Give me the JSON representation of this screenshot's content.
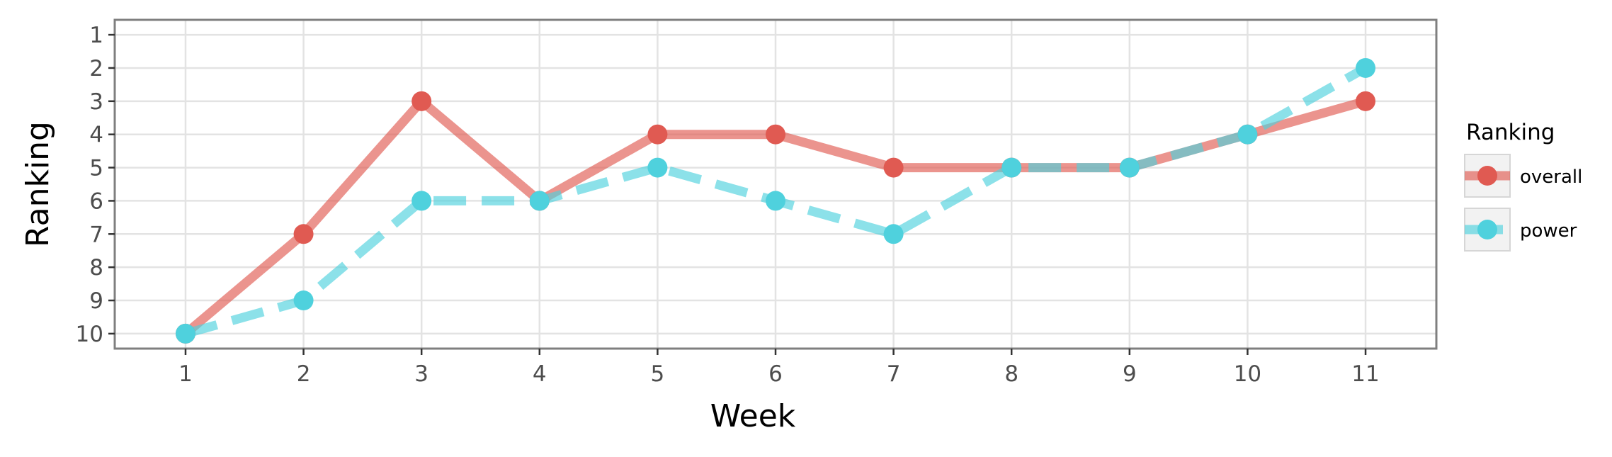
{
  "chart_data": {
    "type": "line",
    "xlabel": "Week",
    "ylabel": "Ranking",
    "x": [
      1,
      2,
      3,
      4,
      5,
      6,
      7,
      8,
      9,
      10,
      11
    ],
    "x_ticks": [
      "1",
      "2",
      "3",
      "4",
      "5",
      "6",
      "7",
      "8",
      "9",
      "10",
      "11"
    ],
    "y_ticks": [
      "1",
      "2",
      "3",
      "4",
      "5",
      "6",
      "7",
      "8",
      "9",
      "10"
    ],
    "xlim": [
      0.4,
      11.6
    ],
    "ylim": [
      10.45,
      0.55
    ],
    "y_reversed": true,
    "grid": true,
    "legend": {
      "title": "Ranking",
      "placement": "right"
    },
    "series": [
      {
        "name": "overall",
        "color": "#e05a52",
        "line_style": "solid",
        "values": [
          10,
          7,
          3,
          6,
          4,
          4,
          5,
          5,
          5,
          4,
          3
        ]
      },
      {
        "name": "power",
        "color": "#4fd1dd",
        "line_style": "dashed",
        "values": [
          10,
          9,
          6,
          6,
          5,
          6,
          7,
          5,
          5,
          4,
          2
        ]
      }
    ]
  }
}
